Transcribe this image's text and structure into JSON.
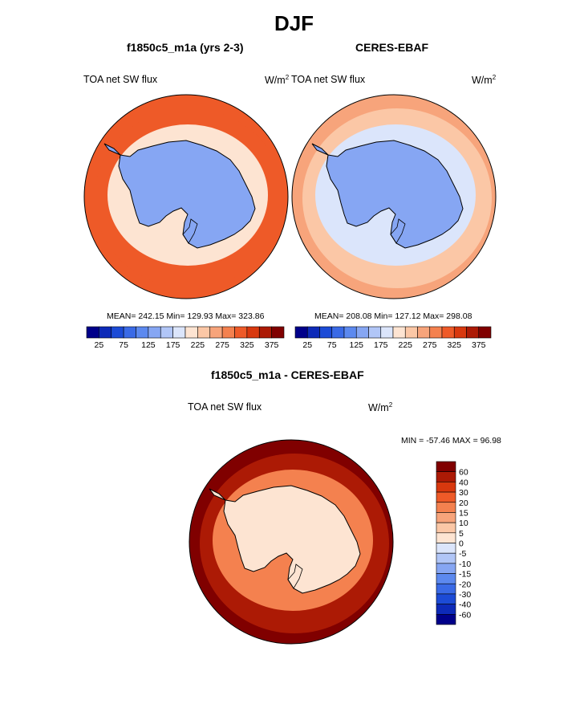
{
  "title": "DJF",
  "panels": [
    {
      "title": "f1850c5_m1a (yrs 2-3)",
      "variable": "TOA net SW flux",
      "units_base": "W/m",
      "units_exp": "2",
      "stats": "MEAN= 242.15  Min= 129.93  Max= 323.86"
    },
    {
      "title": "CERES-EBAF",
      "variable": "TOA net SW flux",
      "units_base": "W/m",
      "units_exp": "2",
      "stats": "MEAN= 208.08  Min= 127.12  Max= 298.08"
    }
  ],
  "diff_panel": {
    "title": "f1850c5_m1a - CERES-EBAF",
    "variable": "TOA net SW flux",
    "units_base": "W/m",
    "units_exp": "2",
    "stats": "MIN = -57.46 MAX =  96.98"
  },
  "colors": {
    "land_blue": "#8faaef",
    "coast": "#000000",
    "abs_scale": [
      "#00008a",
      "#0d2ab8",
      "#1c4bd6",
      "#3a6ae6",
      "#5c89ef",
      "#86a6f3",
      "#b1c6f7",
      "#dbe5fb",
      "#fde4d2",
      "#fbc7a6",
      "#f7a47b",
      "#f4814f",
      "#ee5a28",
      "#d8380e",
      "#ac1a05",
      "#800000"
    ],
    "diff_scale": [
      "#00008a",
      "#0d2ab8",
      "#1c4bd6",
      "#3a6ae6",
      "#5c89ef",
      "#86a6f3",
      "#b1c6f7",
      "#dbe5fb",
      "#fde4d2",
      "#fbc7a6",
      "#f7a47b",
      "#f4814f",
      "#ee5a28",
      "#d8380e",
      "#ac1a05",
      "#800000"
    ]
  },
  "chart_data": [
    {
      "type": "heatmap",
      "projection": "south-polar-stereographic",
      "title": "f1850c5_m1a (yrs 2-3)",
      "variable": "TOA net SW flux",
      "units": "W/m2",
      "mean": 242.15,
      "min": 129.93,
      "max": 323.86,
      "colorbar_levels": [
        25,
        50,
        75,
        100,
        125,
        150,
        175,
        200,
        225,
        250,
        275,
        300,
        325,
        350,
        375
      ],
      "colorbar_tick_labels": [
        "25",
        "75",
        "125",
        "175",
        "225",
        "275",
        "325",
        "375"
      ],
      "colorbar_tick_values": [
        25,
        75,
        125,
        175,
        225,
        275,
        325,
        375
      ],
      "region_values": {
        "antarctica": 140,
        "sea_ice_edge": 205,
        "southern_ocean": 300,
        "outer_ocean": 312
      }
    },
    {
      "type": "heatmap",
      "projection": "south-polar-stereographic",
      "title": "CERES-EBAF",
      "variable": "TOA net SW flux",
      "units": "W/m2",
      "mean": 208.08,
      "min": 127.12,
      "max": 298.08,
      "colorbar_levels": [
        25,
        50,
        75,
        100,
        125,
        150,
        175,
        200,
        225,
        250,
        275,
        300,
        325,
        350,
        375
      ],
      "colorbar_tick_labels": [
        "25",
        "75",
        "125",
        "175",
        "225",
        "275",
        "325",
        "375"
      ],
      "colorbar_tick_values": [
        25,
        75,
        125,
        175,
        225,
        275,
        325,
        375
      ],
      "region_values": {
        "antarctica": 140,
        "sea_ice_edge": 190,
        "southern_ocean": 235,
        "outer_ocean": 270
      }
    },
    {
      "type": "heatmap",
      "projection": "south-polar-stereographic",
      "title": "f1850c5_m1a - CERES-EBAF",
      "variable": "TOA net SW flux",
      "units": "W/m2",
      "min": -57.46,
      "max": 96.98,
      "colorbar_levels": [
        -60,
        -40,
        -30,
        -20,
        -15,
        -10,
        -5,
        0,
        5,
        10,
        15,
        20,
        30,
        40,
        60
      ],
      "colorbar_tick_labels": [
        "60",
        "40",
        "30",
        "20",
        "15",
        "10",
        "5",
        "0",
        "-5",
        "-10",
        "-15",
        "-20",
        "-30",
        "-40",
        "-60"
      ],
      "region_values": {
        "antarctica": 0,
        "sea_ice_edge": 15,
        "southern_ocean": 45,
        "outer_ocean": 70
      }
    }
  ]
}
